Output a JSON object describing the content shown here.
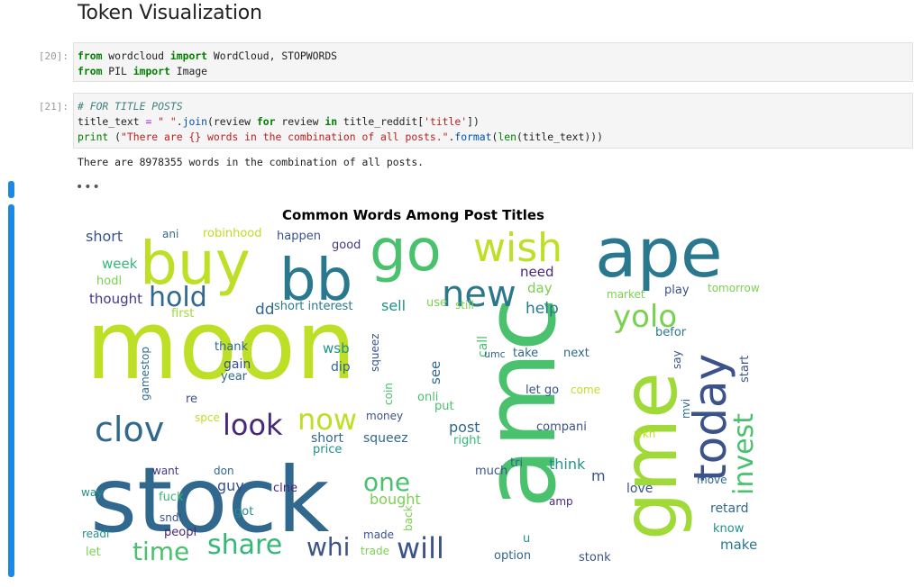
{
  "heading": "Token Visualization",
  "cells": [
    {
      "prompt": "[20]:",
      "lines": [
        [
          {
            "t": "from",
            "c": "kw"
          },
          {
            "t": " wordcloud ",
            "c": ""
          },
          {
            "t": "import",
            "c": "kw"
          },
          {
            "t": " WordCloud, STOPWORDS",
            "c": ""
          }
        ],
        [
          {
            "t": "from",
            "c": "kw"
          },
          {
            "t": " PIL ",
            "c": ""
          },
          {
            "t": "import",
            "c": "kw"
          },
          {
            "t": " Image",
            "c": ""
          }
        ]
      ]
    },
    {
      "prompt": "[21]:",
      "lines": [
        [
          {
            "t": "# FOR TITLE POSTS",
            "c": "cm"
          }
        ],
        [
          {
            "t": "title_text ",
            "c": ""
          },
          {
            "t": "=",
            "c": "op"
          },
          {
            "t": " ",
            "c": ""
          },
          {
            "t": "\" \"",
            "c": "st"
          },
          {
            "t": ".",
            "c": ""
          },
          {
            "t": "join",
            "c": "fn"
          },
          {
            "t": "(review ",
            "c": ""
          },
          {
            "t": "for",
            "c": "kw"
          },
          {
            "t": " review ",
            "c": ""
          },
          {
            "t": "in",
            "c": "kw"
          },
          {
            "t": " title_reddit[",
            "c": ""
          },
          {
            "t": "'title'",
            "c": "st"
          },
          {
            "t": "])",
            "c": ""
          }
        ],
        [
          {
            "t": "print",
            "c": "bi"
          },
          {
            "t": " (",
            "c": ""
          },
          {
            "t": "\"There are {} words in the combination of all posts.\"",
            "c": "st"
          },
          {
            "t": ".",
            "c": ""
          },
          {
            "t": "format",
            "c": "fn"
          },
          {
            "t": "(",
            "c": ""
          },
          {
            "t": "len",
            "c": "bi"
          },
          {
            "t": "(title_text)))",
            "c": ""
          }
        ]
      ]
    }
  ],
  "output_text": "There are 8978355 words in the combination of all posts.",
  "ellipsis": "•••",
  "plot_title": "Common Words Among Post Titles",
  "wordcloud": {
    "words": [
      {
        "text": "moon",
        "color": "#bddf26",
        "rot": 0
      },
      {
        "text": "stock",
        "color": "#31688e",
        "rot": 0
      },
      {
        "text": "amc",
        "color": "#4ac16d",
        "rot": -90
      },
      {
        "text": "gme",
        "color": "#a0da39",
        "rot": -90
      },
      {
        "text": "ape",
        "color": "#2a788e",
        "rot": 0
      },
      {
        "text": "buy",
        "color": "#bddf26",
        "rot": 0
      },
      {
        "text": "go",
        "color": "#4ac16d",
        "rot": 0
      },
      {
        "text": "bb",
        "color": "#2a788e",
        "rot": 0
      },
      {
        "text": "wish",
        "color": "#bddf26",
        "rot": 0
      },
      {
        "text": "today",
        "color": "#3b528b",
        "rot": -90
      },
      {
        "text": "new",
        "color": "#2a788e",
        "rot": 0
      },
      {
        "text": "yolo",
        "color": "#7ad151",
        "rot": 0
      },
      {
        "text": "hold",
        "color": "#31688e",
        "rot": 0
      },
      {
        "text": "clov",
        "color": "#31688e",
        "rot": 0
      },
      {
        "text": "look",
        "color": "#482878",
        "rot": 0
      },
      {
        "text": "now",
        "color": "#bddf26",
        "rot": 0
      },
      {
        "text": "will",
        "color": "#3b528b",
        "rot": 0
      },
      {
        "text": "whi",
        "color": "#3b528b",
        "rot": 0
      },
      {
        "text": "share",
        "color": "#35b779",
        "rot": 0
      },
      {
        "text": "time",
        "color": "#4ac16d",
        "rot": 0
      },
      {
        "text": "invest",
        "color": "#4ac16d",
        "rot": -90
      },
      {
        "text": "one",
        "color": "#4ac16d",
        "rot": 0
      },
      {
        "text": "bought",
        "color": "#7ad151",
        "rot": 0
      },
      {
        "text": "short",
        "color": "#3b528b",
        "rot": 0
      },
      {
        "text": "squeez",
        "color": "#31688e",
        "rot": 0
      },
      {
        "text": "short",
        "color": "#31688e",
        "rot": 0
      },
      {
        "text": "week",
        "color": "#35b779",
        "rot": 0
      },
      {
        "text": "hodl",
        "color": "#7ad151",
        "rot": 0
      },
      {
        "text": "thought",
        "color": "#443983",
        "rot": 0
      },
      {
        "text": "robinhood",
        "color": "#bddf26",
        "rot": 0
      },
      {
        "text": "ani",
        "color": "#31688e",
        "rot": 0
      },
      {
        "text": "happen",
        "color": "#3b528b",
        "rot": 0
      },
      {
        "text": "good",
        "color": "#443983",
        "rot": 0
      },
      {
        "text": "need",
        "color": "#482878",
        "rot": 0
      },
      {
        "text": "day",
        "color": "#7ad151",
        "rot": 0
      },
      {
        "text": "help",
        "color": "#2a788e",
        "rot": 0
      },
      {
        "text": "sell",
        "color": "#21918c",
        "rot": 0
      },
      {
        "text": "dd",
        "color": "#31688e",
        "rot": 0
      },
      {
        "text": "short interest",
        "color": "#2a788e",
        "rot": 0
      },
      {
        "text": "use",
        "color": "#7ad151",
        "rot": 0
      },
      {
        "text": "still",
        "color": "#7ad151",
        "rot": 0
      },
      {
        "text": "market",
        "color": "#7ad151",
        "rot": 0
      },
      {
        "text": "play",
        "color": "#3b528b",
        "rot": 0
      },
      {
        "text": "tomorrow",
        "color": "#7ad151",
        "rot": 0
      },
      {
        "text": "first",
        "color": "#a0da39",
        "rot": 0
      },
      {
        "text": "thank",
        "color": "#31688e",
        "rot": 0
      },
      {
        "text": "gain",
        "color": "#3b528b",
        "rot": 0
      },
      {
        "text": "year",
        "color": "#31688e",
        "rot": 0
      },
      {
        "text": "wsb",
        "color": "#21918c",
        "rot": 0
      },
      {
        "text": "dip",
        "color": "#31688e",
        "rot": 0
      },
      {
        "text": "squeez",
        "color": "#3b528b",
        "rot": -90
      },
      {
        "text": "see",
        "color": "#31688e",
        "rot": -90
      },
      {
        "text": "call",
        "color": "#4ac16d",
        "rot": -90
      },
      {
        "text": "take",
        "color": "#31688e",
        "rot": 0
      },
      {
        "text": "next",
        "color": "#31688e",
        "rot": 0
      },
      {
        "text": "befor",
        "color": "#2a788e",
        "rot": 0
      },
      {
        "text": "start",
        "color": "#3b528b",
        "rot": -90
      },
      {
        "text": "say",
        "color": "#3b528b",
        "rot": -90
      },
      {
        "text": "gamestop",
        "color": "#31688e",
        "rot": -90
      },
      {
        "text": "re",
        "color": "#3b528b",
        "rot": 0
      },
      {
        "text": "coin",
        "color": "#4ac16d",
        "rot": -90
      },
      {
        "text": "onli",
        "color": "#4ac16d",
        "rot": 0
      },
      {
        "text": "put",
        "color": "#4ac16d",
        "rot": 0
      },
      {
        "text": "let go",
        "color": "#3b528b",
        "rot": 0
      },
      {
        "text": "come",
        "color": "#bddf26",
        "rot": 0
      },
      {
        "text": "mvi",
        "color": "#31688e",
        "rot": -90
      },
      {
        "text": "spce",
        "color": "#bddf26",
        "rot": 0
      },
      {
        "text": "money",
        "color": "#3b528b",
        "rot": 0
      },
      {
        "text": "post",
        "color": "#31688e",
        "rot": 0
      },
      {
        "text": "right",
        "color": "#35b779",
        "rot": 0
      },
      {
        "text": "compani",
        "color": "#3b528b",
        "rot": 0
      },
      {
        "text": "wkh",
        "color": "#bddf26",
        "rot": 0
      },
      {
        "text": "price",
        "color": "#21918c",
        "rot": 0
      },
      {
        "text": "want",
        "color": "#443983",
        "rot": 0
      },
      {
        "text": "don",
        "color": "#31688e",
        "rot": 0
      },
      {
        "text": "guy",
        "color": "#3b528b",
        "rot": 0
      },
      {
        "text": "clne",
        "color": "#482878",
        "rot": 0
      },
      {
        "text": "tri",
        "color": "#31688e",
        "rot": 0
      },
      {
        "text": "much",
        "color": "#3b528b",
        "rot": 0
      },
      {
        "text": "think",
        "color": "#21918c",
        "rot": 0
      },
      {
        "text": "m",
        "color": "#3b528b",
        "rot": 0
      },
      {
        "text": "move",
        "color": "#31688e",
        "rot": 0
      },
      {
        "text": "love",
        "color": "#3b528b",
        "rot": 0
      },
      {
        "text": "way",
        "color": "#21918c",
        "rot": 0
      },
      {
        "text": "fuck",
        "color": "#35b779",
        "rot": 0
      },
      {
        "text": "got",
        "color": "#21918c",
        "rot": 0
      },
      {
        "text": "sndl",
        "color": "#3b528b",
        "rot": 0
      },
      {
        "text": "peopl",
        "color": "#482878",
        "rot": 0
      },
      {
        "text": "made",
        "color": "#3b528b",
        "rot": 0
      },
      {
        "text": "trade",
        "color": "#7ad151",
        "rot": 0
      },
      {
        "text": "back",
        "color": "#7ad151",
        "rot": -90
      },
      {
        "text": "amp",
        "color": "#482878",
        "rot": 0
      },
      {
        "text": "u",
        "color": "#21918c",
        "rot": 0
      },
      {
        "text": "option",
        "color": "#31688e",
        "rot": 0
      },
      {
        "text": "retard",
        "color": "#31688e",
        "rot": 0
      },
      {
        "text": "know",
        "color": "#21918c",
        "rot": 0
      },
      {
        "text": "make",
        "color": "#2a788e",
        "rot": 0
      },
      {
        "text": "readi",
        "color": "#21918c",
        "rot": 0
      },
      {
        "text": "let",
        "color": "#7ad151",
        "rot": 0
      },
      {
        "text": "stonk",
        "color": "#3b528b",
        "rot": 0
      },
      {
        "text": "umc",
        "color": "#31688e",
        "rot": 0
      }
    ]
  }
}
